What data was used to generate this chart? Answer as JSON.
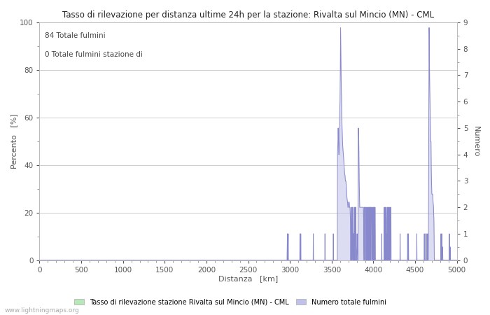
{
  "title": "Tasso di rilevazione per distanza ultime 24h per la stazione: Rivalta sul Mincio (MN) - CML",
  "xlabel": "Distanza   [km]",
  "ylabel_left": "Percento   [%]",
  "ylabel_right": "Numero",
  "annotation_line1": "84 Totale fulmini",
  "annotation_line2": "0 Totale fulmini stazione di",
  "xlim": [
    0,
    5000
  ],
  "ylim_left": [
    0,
    100
  ],
  "ylim_right": [
    0,
    9.0
  ],
  "yticks_left": [
    0,
    20,
    40,
    60,
    80,
    100
  ],
  "yticks_right": [
    0.0,
    1.0,
    2.0,
    3.0,
    4.0,
    5.0,
    6.0,
    7.0,
    8.0,
    9.0
  ],
  "xticks": [
    0,
    500,
    1000,
    1500,
    2000,
    2500,
    3000,
    3500,
    4000,
    4500,
    5000
  ],
  "legend_green": "Tasso di rilevazione stazione Rivalta sul Mincio (MN) - CML",
  "legend_blue": "Numero totale fulmini",
  "color_green": "#b8e8b8",
  "color_blue_fill": "#c0c0e8",
  "color_blue_line": "#8888cc",
  "bg_color": "#ffffff",
  "grid_color": "#cccccc",
  "watermark": "www.lightningmaps.org",
  "blue_data": [
    [
      0,
      0.0
    ],
    [
      2940,
      0.0
    ],
    [
      2950,
      0.0
    ],
    [
      2960,
      0.0
    ],
    [
      2965,
      0.0
    ],
    [
      2970,
      1.0
    ],
    [
      2971,
      0.0
    ],
    [
      2975,
      0.0
    ],
    [
      2980,
      1.0
    ],
    [
      2981,
      0.0
    ],
    [
      2990,
      0.0
    ],
    [
      3000,
      0.0
    ],
    [
      3050,
      0.0
    ],
    [
      3100,
      0.0
    ],
    [
      3118,
      0.0
    ],
    [
      3120,
      1.0
    ],
    [
      3122,
      0.0
    ],
    [
      3128,
      0.0
    ],
    [
      3130,
      1.0
    ],
    [
      3132,
      0.0
    ],
    [
      3140,
      0.0
    ],
    [
      3200,
      0.0
    ],
    [
      3278,
      0.0
    ],
    [
      3280,
      1.0
    ],
    [
      3282,
      0.0
    ],
    [
      3400,
      0.0
    ],
    [
      3418,
      0.0
    ],
    [
      3420,
      1.0
    ],
    [
      3422,
      0.0
    ],
    [
      3500,
      0.0
    ],
    [
      3518,
      0.0
    ],
    [
      3520,
      1.0
    ],
    [
      3522,
      0.0
    ],
    [
      3550,
      0.0
    ],
    [
      3568,
      0.0
    ],
    [
      3570,
      4.0
    ],
    [
      3575,
      4.5
    ],
    [
      3578,
      5.0
    ],
    [
      3582,
      4.5
    ],
    [
      3585,
      4.0
    ],
    [
      3590,
      4.0
    ],
    [
      3595,
      5.5
    ],
    [
      3600,
      6.0
    ],
    [
      3603,
      7.0
    ],
    [
      3607,
      8.8
    ],
    [
      3611,
      7.5
    ],
    [
      3615,
      6.5
    ],
    [
      3618,
      6.2
    ],
    [
      3620,
      5.5
    ],
    [
      3625,
      5.0
    ],
    [
      3630,
      4.5
    ],
    [
      3635,
      4.2
    ],
    [
      3640,
      4.0
    ],
    [
      3645,
      3.8
    ],
    [
      3650,
      3.5
    ],
    [
      3655,
      3.3
    ],
    [
      3660,
      3.2
    ],
    [
      3665,
      3.0
    ],
    [
      3670,
      3.0
    ],
    [
      3675,
      2.8
    ],
    [
      3680,
      2.5
    ],
    [
      3685,
      2.3
    ],
    [
      3690,
      2.2
    ],
    [
      3695,
      2.0
    ],
    [
      3700,
      2.0
    ],
    [
      3702,
      2.2
    ],
    [
      3705,
      2.2
    ],
    [
      3710,
      2.2
    ],
    [
      3715,
      2.0
    ],
    [
      3720,
      2.0
    ],
    [
      3725,
      1.5
    ],
    [
      3728,
      0.0
    ],
    [
      3730,
      0.0
    ],
    [
      3735,
      2.0
    ],
    [
      3737,
      2.0
    ],
    [
      3740,
      2.0
    ],
    [
      3743,
      0.0
    ],
    [
      3745,
      0.0
    ],
    [
      3748,
      2.0
    ],
    [
      3750,
      2.0
    ],
    [
      3753,
      2.0
    ],
    [
      3756,
      0.0
    ],
    [
      3760,
      0.0
    ],
    [
      3763,
      1.0
    ],
    [
      3765,
      1.0
    ],
    [
      3767,
      0.0
    ],
    [
      3770,
      2.0
    ],
    [
      3773,
      2.0
    ],
    [
      3776,
      0.0
    ],
    [
      3778,
      2.0
    ],
    [
      3780,
      2.0
    ],
    [
      3782,
      0.0
    ],
    [
      3785,
      2.0
    ],
    [
      3788,
      2.0
    ],
    [
      3790,
      2.0
    ],
    [
      3793,
      0.0
    ],
    [
      3798,
      0.0
    ],
    [
      3802,
      0.5
    ],
    [
      3805,
      1.0
    ],
    [
      3808,
      0.5
    ],
    [
      3811,
      0.0
    ],
    [
      3815,
      0.0
    ],
    [
      3818,
      4.5
    ],
    [
      3820,
      5.0
    ],
    [
      3822,
      4.8
    ],
    [
      3825,
      4.5
    ],
    [
      3828,
      3.5
    ],
    [
      3830,
      3.0
    ],
    [
      3833,
      2.5
    ],
    [
      3836,
      2.0
    ],
    [
      3840,
      2.0
    ],
    [
      3845,
      2.0
    ],
    [
      3850,
      2.0
    ],
    [
      3855,
      2.0
    ],
    [
      3860,
      2.0
    ],
    [
      3865,
      2.0
    ],
    [
      3870,
      2.0
    ],
    [
      3875,
      2.0
    ],
    [
      3880,
      2.0
    ],
    [
      3883,
      1.5
    ],
    [
      3886,
      0.5
    ],
    [
      3888,
      0.0
    ],
    [
      3890,
      2.0
    ],
    [
      3892,
      2.0
    ],
    [
      3894,
      0.0
    ],
    [
      3896,
      2.0
    ],
    [
      3898,
      2.0
    ],
    [
      3900,
      2.0
    ],
    [
      3903,
      2.0
    ],
    [
      3906,
      2.0
    ],
    [
      3908,
      0.0
    ],
    [
      3912,
      2.0
    ],
    [
      3915,
      2.0
    ],
    [
      3918,
      0.0
    ],
    [
      3922,
      2.0
    ],
    [
      3925,
      2.0
    ],
    [
      3928,
      0.0
    ],
    [
      3930,
      0.0
    ],
    [
      3932,
      1.5
    ],
    [
      3934,
      2.0
    ],
    [
      3936,
      2.0
    ],
    [
      3938,
      0.0
    ],
    [
      3940,
      2.0
    ],
    [
      3943,
      2.0
    ],
    [
      3946,
      2.0
    ],
    [
      3948,
      0.0
    ],
    [
      3950,
      2.0
    ],
    [
      3953,
      2.0
    ],
    [
      3956,
      2.0
    ],
    [
      3958,
      0.0
    ],
    [
      3960,
      2.0
    ],
    [
      3963,
      2.0
    ],
    [
      3966,
      2.0
    ],
    [
      3968,
      0.0
    ],
    [
      3970,
      2.0
    ],
    [
      3973,
      2.0
    ],
    [
      3976,
      2.0
    ],
    [
      3978,
      1.5
    ],
    [
      3980,
      0.5
    ],
    [
      3982,
      0.0
    ],
    [
      3984,
      1.5
    ],
    [
      3986,
      2.0
    ],
    [
      3988,
      2.0
    ],
    [
      3990,
      0.0
    ],
    [
      3993,
      1.5
    ],
    [
      3996,
      2.0
    ],
    [
      3998,
      0.0
    ],
    [
      4000,
      2.0
    ],
    [
      4003,
      2.0
    ],
    [
      4006,
      2.0
    ],
    [
      4008,
      0.0
    ],
    [
      4010,
      2.0
    ],
    [
      4013,
      2.0
    ],
    [
      4016,
      0.0
    ],
    [
      4018,
      2.0
    ],
    [
      4021,
      2.0
    ],
    [
      4024,
      0.0
    ],
    [
      4050,
      0.0
    ],
    [
      4098,
      0.0
    ],
    [
      4100,
      1.0
    ],
    [
      4102,
      0.0
    ],
    [
      4110,
      0.0
    ],
    [
      4128,
      0.0
    ],
    [
      4130,
      2.0
    ],
    [
      4132,
      0.0
    ],
    [
      4136,
      2.0
    ],
    [
      4138,
      2.0
    ],
    [
      4140,
      2.0
    ],
    [
      4142,
      0.0
    ],
    [
      4145,
      2.0
    ],
    [
      4148,
      2.0
    ],
    [
      4150,
      2.0
    ],
    [
      4152,
      0.0
    ],
    [
      4155,
      1.0
    ],
    [
      4157,
      1.0
    ],
    [
      4159,
      0.0
    ],
    [
      4162,
      1.5
    ],
    [
      4165,
      2.0
    ],
    [
      4167,
      2.0
    ],
    [
      4169,
      0.0
    ],
    [
      4172,
      2.0
    ],
    [
      4174,
      2.0
    ],
    [
      4176,
      2.0
    ],
    [
      4178,
      0.0
    ],
    [
      4182,
      1.5
    ],
    [
      4185,
      2.0
    ],
    [
      4187,
      0.0
    ],
    [
      4190,
      2.0
    ],
    [
      4192,
      2.0
    ],
    [
      4194,
      0.0
    ],
    [
      4196,
      1.5
    ],
    [
      4198,
      2.0
    ],
    [
      4200,
      2.0
    ],
    [
      4202,
      0.0
    ],
    [
      4205,
      1.5
    ],
    [
      4208,
      2.0
    ],
    [
      4210,
      2.0
    ],
    [
      4212,
      0.0
    ],
    [
      4220,
      0.0
    ],
    [
      4300,
      0.0
    ],
    [
      4318,
      0.0
    ],
    [
      4320,
      1.0
    ],
    [
      4322,
      0.0
    ],
    [
      4330,
      0.0
    ],
    [
      4400,
      0.0
    ],
    [
      4408,
      0.0
    ],
    [
      4410,
      1.0
    ],
    [
      4412,
      0.0
    ],
    [
      4418,
      0.0
    ],
    [
      4420,
      1.0
    ],
    [
      4422,
      0.0
    ],
    [
      4430,
      0.0
    ],
    [
      4500,
      0.0
    ],
    [
      4518,
      0.0
    ],
    [
      4520,
      1.0
    ],
    [
      4522,
      0.0
    ],
    [
      4530,
      0.0
    ],
    [
      4600,
      0.0
    ],
    [
      4608,
      0.0
    ],
    [
      4610,
      1.0
    ],
    [
      4612,
      0.0
    ],
    [
      4618,
      0.0
    ],
    [
      4620,
      1.0
    ],
    [
      4622,
      0.0
    ],
    [
      4625,
      0.0
    ],
    [
      4630,
      0.0
    ],
    [
      4638,
      0.0
    ],
    [
      4640,
      1.0
    ],
    [
      4642,
      0.0
    ],
    [
      4648,
      0.0
    ],
    [
      4650,
      1.0
    ],
    [
      4652,
      0.0
    ],
    [
      4658,
      0.0
    ],
    [
      4660,
      1.5
    ],
    [
      4663,
      5.0
    ],
    [
      4665,
      7.5
    ],
    [
      4667,
      8.8
    ],
    [
      4669,
      8.5
    ],
    [
      4671,
      7.5
    ],
    [
      4673,
      7.0
    ],
    [
      4675,
      6.5
    ],
    [
      4678,
      6.0
    ],
    [
      4680,
      5.5
    ],
    [
      4683,
      5.0
    ],
    [
      4686,
      4.5
    ],
    [
      4690,
      4.5
    ],
    [
      4693,
      3.5
    ],
    [
      4696,
      3.0
    ],
    [
      4700,
      2.5
    ],
    [
      4705,
      2.5
    ],
    [
      4710,
      2.5
    ],
    [
      4715,
      2.2
    ],
    [
      4720,
      2.0
    ],
    [
      4725,
      1.5
    ],
    [
      4728,
      0.5
    ],
    [
      4730,
      0.0
    ],
    [
      4735,
      0.0
    ],
    [
      4800,
      0.0
    ],
    [
      4808,
      0.0
    ],
    [
      4810,
      1.0
    ],
    [
      4812,
      0.0
    ],
    [
      4818,
      0.0
    ],
    [
      4820,
      1.0
    ],
    [
      4822,
      0.0
    ],
    [
      4825,
      0.5
    ],
    [
      4828,
      0.5
    ],
    [
      4830,
      0.5
    ],
    [
      4832,
      0.0
    ],
    [
      4835,
      0.0
    ],
    [
      4900,
      0.0
    ],
    [
      4908,
      0.0
    ],
    [
      4910,
      1.0
    ],
    [
      4912,
      0.0
    ],
    [
      4918,
      0.0
    ],
    [
      4920,
      0.5
    ],
    [
      4922,
      0.0
    ],
    [
      4925,
      0.0
    ],
    [
      5000,
      0.0
    ]
  ]
}
